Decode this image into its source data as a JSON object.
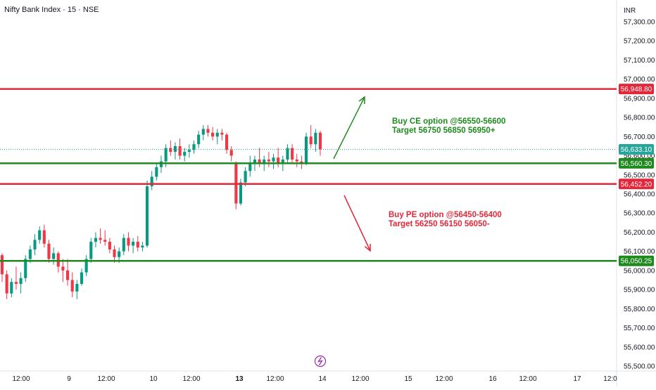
{
  "header": {
    "symbol_title": "Nifty Bank Index · 15 · NSE",
    "currency": "INR"
  },
  "colors": {
    "up": "#089981",
    "down": "#f23645",
    "support": "#1e8a1e",
    "resistance": "#e0283a",
    "last_price": "#26a69a",
    "annotation_buy_ce": "#1e8a1e",
    "annotation_buy_pe": "#e0283a",
    "event_icon": "#9c27b0"
  },
  "chart_data": {
    "type": "candlestick",
    "ylim": [
      55480,
      57340
    ],
    "y_ticks": [
      "57,300.00",
      "57,200.00",
      "57,100.00",
      "57,000.00",
      "56,900.00",
      "56,800.00",
      "56,700.00",
      "56,600.00",
      "56,500.00",
      "56,400.00",
      "56,300.00",
      "56,200.00",
      "56,100.00",
      "56,000.00",
      "55,900.00",
      "55,800.00",
      "55,700.00",
      "55,600.00",
      "55,500.00"
    ],
    "x_ticks": [
      "12:00",
      "9",
      "12:00",
      "10",
      "12:00",
      "13",
      "12:00",
      "14",
      "12:00",
      "15",
      "12:00",
      "16",
      "12:00",
      "17",
      "12:0"
    ],
    "x_tick_bold": [
      "13"
    ],
    "candles": [
      [
        56080,
        56090,
        55940,
        55980
      ],
      [
        55980,
        56000,
        55850,
        55880
      ],
      [
        55880,
        55960,
        55860,
        55940
      ],
      [
        55940,
        56020,
        55900,
        55930
      ],
      [
        55930,
        55990,
        55880,
        55960
      ],
      [
        55960,
        56080,
        55940,
        56060
      ],
      [
        56060,
        56130,
        56040,
        56110
      ],
      [
        56110,
        56190,
        56080,
        56160
      ],
      [
        56160,
        56230,
        56140,
        56210
      ],
      [
        56210,
        56240,
        56120,
        56140
      ],
      [
        56140,
        56160,
        56040,
        56060
      ],
      [
        56060,
        56120,
        56030,
        56090
      ],
      [
        56090,
        56100,
        55990,
        56020
      ],
      [
        56020,
        56060,
        55940,
        56000
      ],
      [
        56000,
        56060,
        55920,
        55950
      ],
      [
        55950,
        55990,
        55860,
        55890
      ],
      [
        55890,
        55950,
        55850,
        55930
      ],
      [
        55930,
        56010,
        55920,
        55990
      ],
      [
        55990,
        56080,
        55970,
        56060
      ],
      [
        56060,
        56170,
        56040,
        56150
      ],
      [
        56150,
        56200,
        56120,
        56170
      ],
      [
        56170,
        56220,
        56140,
        56160
      ],
      [
        56160,
        56210,
        56130,
        56150
      ],
      [
        56150,
        56170,
        56090,
        56110
      ],
      [
        56110,
        56130,
        56040,
        56070
      ],
      [
        56070,
        56120,
        56040,
        56100
      ],
      [
        56100,
        56190,
        56080,
        56170
      ],
      [
        56170,
        56200,
        56100,
        56130
      ],
      [
        56130,
        56170,
        56090,
        56150
      ],
      [
        56150,
        56180,
        56100,
        56120
      ],
      [
        56120,
        56150,
        56100,
        56130
      ],
      [
        56130,
        56470,
        56120,
        56440
      ],
      [
        56440,
        56520,
        56420,
        56490
      ],
      [
        56490,
        56560,
        56470,
        56540
      ],
      [
        56540,
        56600,
        56510,
        56570
      ],
      [
        56570,
        56660,
        56540,
        56640
      ],
      [
        56640,
        56680,
        56600,
        56620
      ],
      [
        56620,
        56670,
        56580,
        56650
      ],
      [
        56650,
        56690,
        56580,
        56600
      ],
      [
        56600,
        56640,
        56570,
        56620
      ],
      [
        56620,
        56660,
        56590,
        56630
      ],
      [
        56630,
        56680,
        56610,
        56660
      ],
      [
        56660,
        56730,
        56640,
        56710
      ],
      [
        56710,
        56760,
        56680,
        56740
      ],
      [
        56740,
        56760,
        56700,
        56720
      ],
      [
        56720,
        56750,
        56680,
        56700
      ],
      [
        56700,
        56740,
        56660,
        56720
      ],
      [
        56720,
        56740,
        56680,
        56710
      ],
      [
        56710,
        56720,
        56610,
        56630
      ],
      [
        56630,
        56650,
        56570,
        56600
      ],
      [
        56560,
        56570,
        56320,
        56350
      ],
      [
        56350,
        56480,
        56340,
        56460
      ],
      [
        56460,
        56540,
        56440,
        56520
      ],
      [
        56520,
        56600,
        56490,
        56560
      ],
      [
        56560,
        56600,
        56520,
        56580
      ],
      [
        56580,
        56640,
        56540,
        56560
      ],
      [
        56560,
        56600,
        56520,
        56580
      ],
      [
        56580,
        56620,
        56540,
        56570
      ],
      [
        56570,
        56610,
        56530,
        56590
      ],
      [
        56590,
        56640,
        56540,
        56560
      ],
      [
        56560,
        56600,
        56520,
        56580
      ],
      [
        56580,
        56660,
        56560,
        56640
      ],
      [
        56640,
        56660,
        56560,
        56580
      ],
      [
        56580,
        56610,
        56540,
        56570
      ],
      [
        56570,
        56600,
        56530,
        56560
      ],
      [
        56560,
        56720,
        56550,
        56700
      ],
      [
        56700,
        56760,
        56640,
        56660
      ],
      [
        56660,
        56740,
        56620,
        56720
      ],
      [
        56720,
        56730,
        56600,
        56633
      ]
    ],
    "horizontal_levels": [
      {
        "price": 56948.8,
        "label": "56,948.80",
        "color": "#e0283a"
      },
      {
        "price": 56560.3,
        "label": "56,560.30",
        "color": "#1e8a1e"
      },
      {
        "price": 56452.2,
        "label": "56,452.20",
        "color": "#e0283a"
      },
      {
        "price": 56050.25,
        "label": "56,050.25",
        "color": "#1e8a1e"
      }
    ],
    "last_price": {
      "price": 56633.1,
      "label": "56,633.10"
    },
    "annotations": [
      {
        "lines": [
          "Buy CE option @56550-56600",
          "Target 56750 56850 56950+"
        ],
        "color": "#1e8a1e"
      },
      {
        "lines": [
          "Buy PE option @56450-56400",
          "Target 56250 56150 56050-"
        ],
        "color": "#e0283a"
      }
    ]
  }
}
